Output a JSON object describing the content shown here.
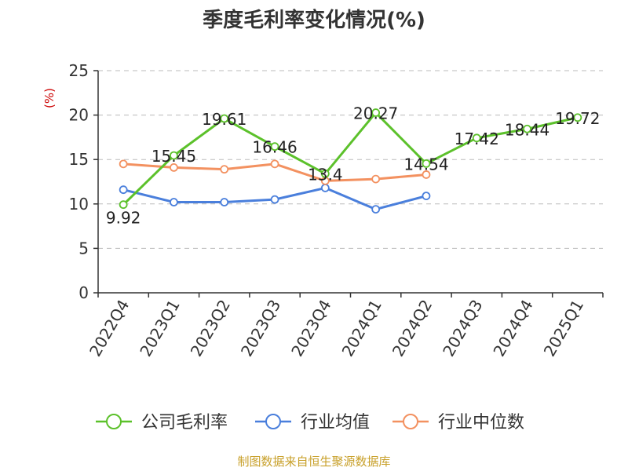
{
  "chart_data": {
    "type": "line",
    "title": "季度毛利率变化情况(%)",
    "ylabel": "(%)",
    "xlabel": "",
    "categories": [
      "2022Q4",
      "2023Q1",
      "2023Q2",
      "2023Q3",
      "2023Q4",
      "2024Q1",
      "2024Q2",
      "2024Q3",
      "2024Q4",
      "2025Q1"
    ],
    "ylim": [
      0,
      25
    ],
    "yticks": [
      0,
      5,
      10,
      15,
      20,
      25
    ],
    "grid": true,
    "legend_position": "bottom",
    "series": [
      {
        "name": "公司毛利率",
        "color": "#5cc12b",
        "values": [
          9.92,
          15.45,
          19.61,
          16.46,
          13.4,
          20.27,
          14.54,
          17.42,
          18.44,
          19.72
        ],
        "labels": [
          "9.92",
          "15.45",
          "19.61",
          "16.46",
          "13.4",
          "20.27",
          "14.54",
          "17.42",
          "18.44",
          "19.72"
        ]
      },
      {
        "name": "行业均值",
        "color": "#4a7fdc",
        "values": [
          11.6,
          10.2,
          10.2,
          10.5,
          11.8,
          9.4,
          10.9,
          null,
          null,
          null
        ]
      },
      {
        "name": "行业中位数",
        "color": "#f39160",
        "values": [
          14.5,
          14.1,
          13.9,
          14.5,
          12.6,
          12.8,
          13.3,
          null,
          null,
          null
        ]
      }
    ]
  },
  "source": "制图数据来自恒生聚源数据库"
}
